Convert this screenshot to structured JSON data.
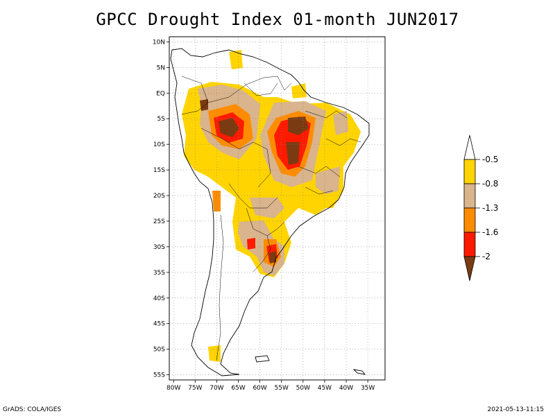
{
  "title": "GPCC Drought Index 01-month JUN2017",
  "footer_left": "GrADS: COLA/IGES",
  "footer_right": "2021-05-13-11:15",
  "chart_data": {
    "type": "map",
    "region": "South America",
    "variable": "GPCC Drought Index (1-month)",
    "period": "JUN2017",
    "lon_range": [
      -81,
      -31
    ],
    "lat_range": [
      -56,
      11
    ],
    "lat_ticks": [
      "10N",
      "5N",
      "EQ",
      "5S",
      "10S",
      "15S",
      "20S",
      "25S",
      "30S",
      "35S",
      "40S",
      "45S",
      "50S",
      "55S"
    ],
    "lat_values": [
      10,
      5,
      0,
      -5,
      -10,
      -15,
      -20,
      -25,
      -30,
      -35,
      -40,
      -45,
      -50,
      -55
    ],
    "lon_ticks": [
      "80W",
      "75W",
      "70W",
      "65W",
      "60W",
      "55W",
      "50W",
      "45W",
      "40W",
      "35W"
    ],
    "lon_values": [
      -80,
      -75,
      -70,
      -65,
      -60,
      -55,
      -50,
      -45,
      -40,
      -35
    ],
    "colorbar": {
      "labels": [
        "-0.5",
        "-0.8",
        "-1.3",
        "-1.6",
        "-2"
      ],
      "colors": [
        "#ffffff",
        "#ffd400",
        "#d9b48c",
        "#ff8c00",
        "#ff1a00",
        "#7a3b12"
      ]
    }
  }
}
